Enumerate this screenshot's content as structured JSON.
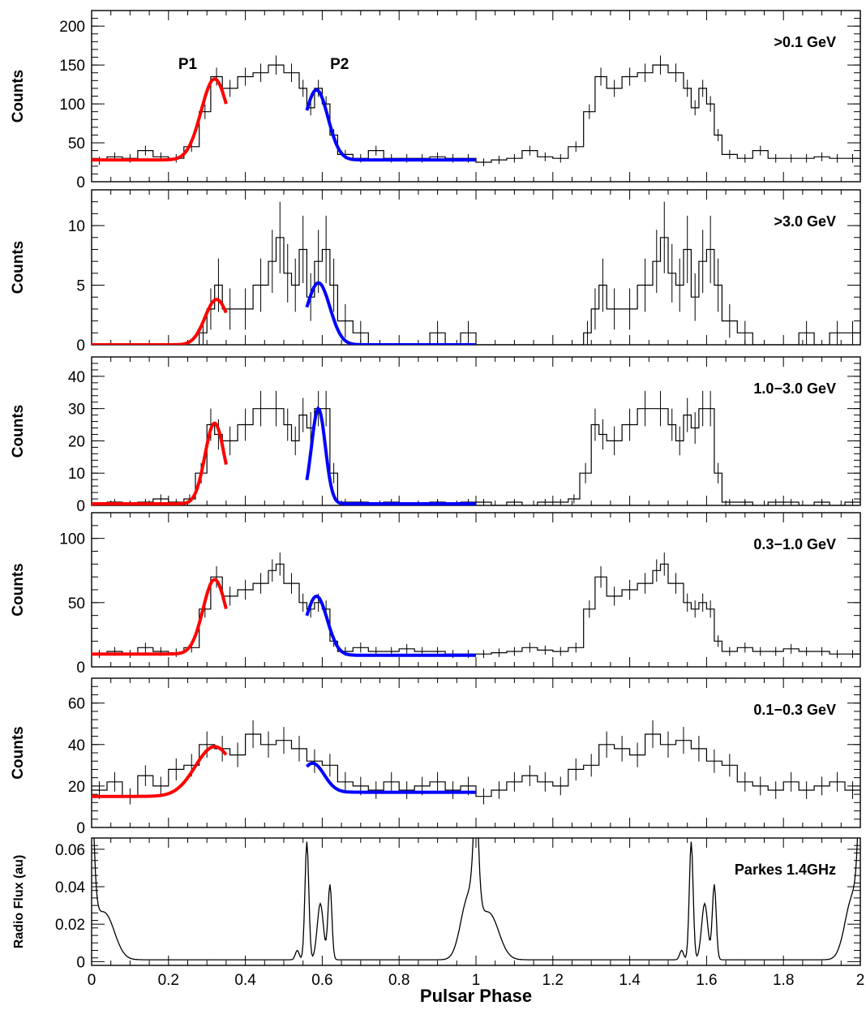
{
  "chart_data": {
    "type": "line",
    "shared_x": {
      "label": "Pulsar Phase",
      "range": [
        0,
        2
      ],
      "ticks": [
        "0",
        "0.2",
        "0.4",
        "0.6",
        "0.8",
        "1",
        "1.2",
        "1.4",
        "1.6",
        "1.8",
        "2"
      ]
    },
    "panels": [
      {
        "id": "p1",
        "label": ">0.1 GeV",
        "ylabel": "Counts",
        "ylim": [
          0,
          220
        ],
        "yticks": [
          0,
          50,
          100,
          150,
          200
        ],
        "peak_labels": [
          "P1",
          "P2"
        ],
        "histogram": {
          "x": [
            0.0,
            0.04,
            0.08,
            0.12,
            0.16,
            0.2,
            0.24,
            0.28,
            0.31,
            0.34,
            0.38,
            0.42,
            0.46,
            0.5,
            0.54,
            0.56,
            0.58,
            0.6,
            0.62,
            0.64,
            0.68,
            0.72,
            0.76,
            0.8,
            0.84,
            0.88,
            0.92,
            0.96,
            1.0,
            1.04,
            1.08,
            1.12,
            1.16,
            1.2,
            1.24,
            1.28,
            1.31,
            1.34,
            1.38,
            1.42,
            1.46,
            1.5,
            1.54,
            1.56,
            1.58,
            1.6,
            1.62,
            1.64,
            1.68,
            1.72,
            1.76,
            1.8,
            1.84,
            1.88,
            1.92,
            1.96,
            2.0
          ],
          "y": [
            27,
            32,
            30,
            40,
            32,
            30,
            45,
            90,
            135,
            120,
            135,
            140,
            150,
            140,
            120,
            95,
            120,
            100,
            60,
            35,
            30,
            40,
            30,
            30,
            30,
            32,
            30,
            30,
            25,
            28,
            30,
            40,
            32,
            30,
            45,
            90,
            135,
            120,
            135,
            140,
            150,
            140,
            120,
            95,
            120,
            100,
            60,
            35,
            30,
            40,
            30,
            30,
            30,
            32,
            30,
            30,
            25
          ]
        },
        "fit_p1": {
          "baseline": 28,
          "amplitude": 104,
          "mean": 0.32,
          "sigma": 0.035,
          "range": [
            0.0,
            0.35
          ]
        },
        "fit_p2": {
          "baseline": 28,
          "amplitude": 90,
          "mean": 0.585,
          "sigma": 0.03,
          "range": [
            0.56,
            1.0
          ]
        }
      },
      {
        "id": "p2",
        "label": ">3.0 GeV",
        "ylabel": "Counts",
        "ylim": [
          0,
          13
        ],
        "yticks": [
          0,
          5,
          10
        ],
        "histogram": {
          "x": [
            0.0,
            0.04,
            0.08,
            0.12,
            0.16,
            0.2,
            0.24,
            0.28,
            0.3,
            0.32,
            0.34,
            0.38,
            0.42,
            0.46,
            0.48,
            0.5,
            0.52,
            0.54,
            0.56,
            0.58,
            0.6,
            0.62,
            0.64,
            0.68,
            0.72,
            0.76,
            0.8,
            0.84,
            0.88,
            0.92,
            0.96,
            1.0,
            1.04,
            1.08,
            1.12,
            1.16,
            1.2,
            1.24,
            1.28,
            1.3,
            1.32,
            1.34,
            1.38,
            1.42,
            1.46,
            1.48,
            1.5,
            1.52,
            1.54,
            1.56,
            1.58,
            1.6,
            1.62,
            1.64,
            1.68,
            1.72,
            1.76,
            1.8,
            1.84,
            1.88,
            1.92,
            1.96,
            2.0
          ],
          "y": [
            0,
            0,
            0,
            0,
            0,
            0,
            0,
            1,
            3,
            5,
            3,
            3,
            5,
            7,
            9,
            6,
            5,
            8,
            4,
            7,
            8,
            5,
            2,
            1,
            0,
            0,
            0,
            0,
            1,
            0,
            1,
            0,
            0,
            0,
            0,
            0,
            0,
            0,
            1,
            3,
            5,
            3,
            3,
            5,
            7,
            9,
            6,
            5,
            8,
            4,
            7,
            8,
            5,
            2,
            1,
            0,
            0,
            0,
            1,
            0,
            1,
            1,
            0
          ]
        },
        "fit_p1": {
          "baseline": 0,
          "amplitude": 3.8,
          "mean": 0.325,
          "sigma": 0.03,
          "range": [
            0.0,
            0.35
          ]
        },
        "fit_p2": {
          "baseline": 0,
          "amplitude": 5.2,
          "mean": 0.59,
          "sigma": 0.03,
          "range": [
            0.56,
            1.0
          ]
        }
      },
      {
        "id": "p3",
        "label": "1.0−3.0 GeV",
        "ylabel": "Counts",
        "ylim": [
          0,
          46
        ],
        "yticks": [
          0,
          10,
          20,
          30,
          40
        ],
        "histogram": {
          "x": [
            0.0,
            0.04,
            0.08,
            0.12,
            0.16,
            0.2,
            0.24,
            0.27,
            0.3,
            0.32,
            0.34,
            0.38,
            0.42,
            0.46,
            0.5,
            0.52,
            0.54,
            0.56,
            0.58,
            0.6,
            0.62,
            0.64,
            0.68,
            0.72,
            0.76,
            0.8,
            0.84,
            0.88,
            0.92,
            0.96,
            1.0,
            1.04,
            1.08,
            1.12,
            1.16,
            1.2,
            1.24,
            1.27,
            1.3,
            1.32,
            1.34,
            1.38,
            1.42,
            1.46,
            1.5,
            1.52,
            1.54,
            1.56,
            1.58,
            1.6,
            1.62,
            1.64,
            1.68,
            1.72,
            1.76,
            1.8,
            1.84,
            1.88,
            1.92,
            1.96,
            2.0
          ],
          "y": [
            0,
            1,
            0,
            1,
            2,
            1,
            2,
            10,
            25,
            22,
            20,
            25,
            30,
            30,
            25,
            20,
            28,
            24,
            30,
            30,
            10,
            1,
            1,
            0,
            1,
            0,
            0,
            1,
            0,
            1,
            1,
            0,
            1,
            0,
            1,
            1,
            2,
            10,
            25,
            22,
            20,
            25,
            30,
            30,
            25,
            20,
            28,
            24,
            30,
            30,
            10,
            1,
            1,
            0,
            1,
            1,
            0,
            1,
            0,
            1,
            1
          ]
        },
        "fit_p1": {
          "baseline": 0.5,
          "amplitude": 25,
          "mean": 0.32,
          "sigma": 0.025,
          "range": [
            0.0,
            0.35
          ]
        },
        "fit_p2": {
          "baseline": 0.5,
          "amplitude": 29.5,
          "mean": 0.59,
          "sigma": 0.018,
          "range": [
            0.56,
            1.0
          ]
        }
      },
      {
        "id": "p4",
        "label": "0.3−1.0 GeV",
        "ylabel": "Counts",
        "ylim": [
          0,
          120
        ],
        "yticks": [
          0,
          50,
          100
        ],
        "histogram": {
          "x": [
            0.0,
            0.04,
            0.08,
            0.12,
            0.16,
            0.2,
            0.24,
            0.28,
            0.31,
            0.34,
            0.38,
            0.42,
            0.46,
            0.48,
            0.5,
            0.54,
            0.56,
            0.58,
            0.6,
            0.62,
            0.64,
            0.68,
            0.72,
            0.76,
            0.8,
            0.84,
            0.88,
            0.92,
            0.96,
            1.0,
            1.04,
            1.08,
            1.12,
            1.16,
            1.2,
            1.24,
            1.28,
            1.31,
            1.34,
            1.38,
            1.42,
            1.46,
            1.48,
            1.5,
            1.54,
            1.56,
            1.58,
            1.6,
            1.62,
            1.64,
            1.68,
            1.72,
            1.76,
            1.8,
            1.84,
            1.88,
            1.92,
            1.96,
            2.0
          ],
          "y": [
            10,
            12,
            10,
            15,
            12,
            11,
            15,
            45,
            70,
            55,
            60,
            65,
            75,
            80,
            65,
            50,
            45,
            50,
            45,
            20,
            12,
            15,
            12,
            12,
            14,
            12,
            12,
            10,
            10,
            10,
            11,
            12,
            15,
            13,
            12,
            15,
            45,
            70,
            55,
            60,
            65,
            75,
            80,
            65,
            50,
            45,
            50,
            45,
            20,
            12,
            15,
            12,
            12,
            14,
            12,
            12,
            10,
            10,
            8
          ]
        },
        "fit_p1": {
          "baseline": 10,
          "amplitude": 58,
          "mean": 0.32,
          "sigma": 0.03,
          "range": [
            0.0,
            0.35
          ]
        },
        "fit_p2": {
          "baseline": 9,
          "amplitude": 46,
          "mean": 0.585,
          "sigma": 0.028,
          "range": [
            0.56,
            1.0
          ]
        }
      },
      {
        "id": "p5",
        "label": "0.1−0.3 GeV",
        "ylabel": "Counts",
        "ylim": [
          0,
          72
        ],
        "yticks": [
          0,
          20,
          40,
          60
        ],
        "histogram": {
          "x": [
            0.0,
            0.04,
            0.08,
            0.12,
            0.16,
            0.2,
            0.24,
            0.28,
            0.32,
            0.36,
            0.4,
            0.44,
            0.48,
            0.52,
            0.56,
            0.6,
            0.64,
            0.68,
            0.72,
            0.76,
            0.8,
            0.84,
            0.88,
            0.92,
            0.96,
            1.0,
            1.04,
            1.08,
            1.12,
            1.16,
            1.2,
            1.24,
            1.28,
            1.32,
            1.36,
            1.4,
            1.44,
            1.48,
            1.52,
            1.56,
            1.6,
            1.64,
            1.68,
            1.72,
            1.76,
            1.8,
            1.84,
            1.88,
            1.92,
            1.96,
            2.0
          ],
          "y": [
            18,
            22,
            15,
            25,
            20,
            28,
            30,
            40,
            38,
            35,
            45,
            40,
            42,
            38,
            32,
            30,
            22,
            20,
            18,
            22,
            18,
            20,
            22,
            18,
            20,
            15,
            18,
            22,
            25,
            22,
            20,
            28,
            30,
            40,
            38,
            35,
            45,
            40,
            42,
            38,
            32,
            30,
            22,
            20,
            18,
            22,
            18,
            20,
            22,
            18,
            25
          ]
        },
        "fit_p1": {
          "baseline": 15,
          "amplitude": 24,
          "mean": 0.32,
          "sigma": 0.05,
          "range": [
            0.0,
            0.35
          ]
        },
        "fit_p2": {
          "baseline": 17,
          "amplitude": 14,
          "mean": 0.575,
          "sigma": 0.03,
          "range": [
            0.56,
            1.0
          ]
        }
      },
      {
        "id": "p6",
        "label": "Parkes 1.4GHz",
        "ylabel": "Radio Flux (au)",
        "ylim": [
          -0.002,
          0.066
        ],
        "yticks": [
          0,
          0.02,
          0.04,
          0.06
        ],
        "ytick_labels": [
          "0",
          "0.02",
          "0.04",
          "0.06"
        ],
        "radio": {
          "baseline": 0.001,
          "components": [
            {
              "center": 0.0,
              "amp": 0.038,
              "width": 0.008
            },
            {
              "center": 0.03,
              "amp": 0.015,
              "width": 0.025
            },
            {
              "center": 0.535,
              "amp": 0.005,
              "width": 0.005
            },
            {
              "center": 0.56,
              "amp": 0.063,
              "width": 0.005
            },
            {
              "center": 0.595,
              "amp": 0.03,
              "width": 0.008
            },
            {
              "center": 0.62,
              "amp": 0.04,
              "width": 0.005
            },
            {
              "center": 0.98,
              "amp": 0.032,
              "width": 0.02
            },
            {
              "center": 1.0,
              "amp": 0.022,
              "width": 0.005
            },
            {
              "center": 1.04,
              "amp": 0.01,
              "width": 0.025
            }
          ],
          "period": 1.0
        }
      }
    ]
  }
}
